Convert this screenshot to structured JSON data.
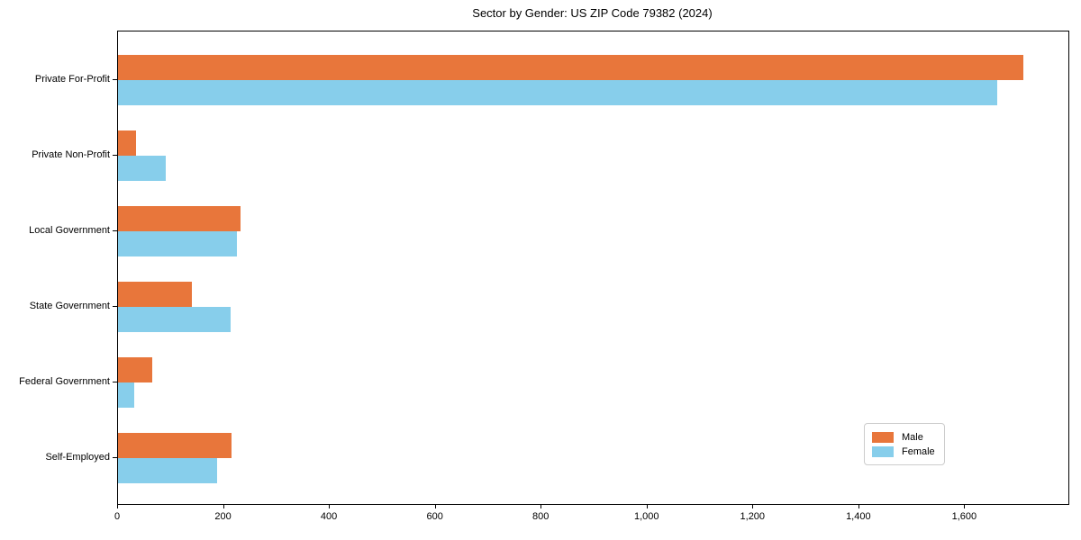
{
  "chart_data": {
    "type": "bar",
    "orientation": "horizontal",
    "title": "Sector by Gender: US ZIP Code 79382 (2024)",
    "categories": [
      "Private For-Profit",
      "Private Non-Profit",
      "Local Government",
      "State Government",
      "Federal Government",
      "Self-Employed"
    ],
    "series": [
      {
        "name": "Male",
        "color": "#e8763b",
        "values": [
          1710,
          34,
          232,
          139,
          65,
          215
        ]
      },
      {
        "name": "Female",
        "color": "#87ceeb",
        "values": [
          1660,
          90,
          224,
          212,
          30,
          187
        ]
      }
    ],
    "xlabel": "",
    "ylabel": "",
    "xlim": [
      0,
      1795
    ],
    "xticks": [
      0,
      200,
      400,
      600,
      800,
      1000,
      1200,
      1400,
      1600
    ],
    "xtick_labels": [
      "0",
      "200",
      "400",
      "600",
      "800",
      "1,000",
      "1,200",
      "1,400",
      "1,600"
    ],
    "grid": false,
    "legend_position": "lower right",
    "plot_border_color": "#000000",
    "background_color": "#ffffff"
  }
}
